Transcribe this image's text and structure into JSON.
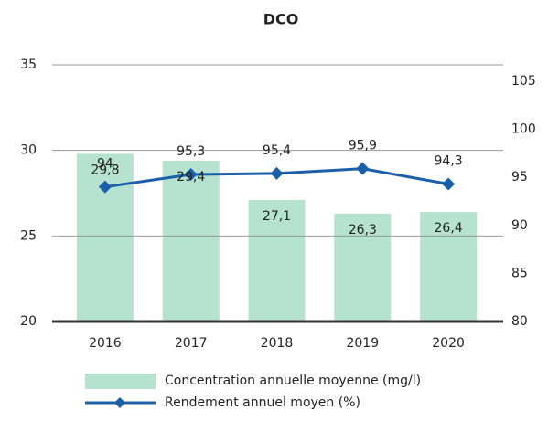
{
  "chart_data": {
    "type": "bar-line",
    "title": "DCO",
    "categories": [
      "2016",
      "2017",
      "2018",
      "2019",
      "2020"
    ],
    "series": [
      {
        "name": "Concentration annuelle moyenne (mg/l)",
        "type": "bar",
        "color": "#b5e2d1",
        "values": [
          29.8,
          29.4,
          27.1,
          26.3,
          26.4
        ],
        "value_labels": [
          "29,8",
          "29,4",
          "27,1",
          "26,3",
          "26,4"
        ]
      },
      {
        "name": "Rendement annuel moyen (%)",
        "type": "line",
        "axis": "y2",
        "color": "#1b5fa8",
        "values": [
          94,
          95.3,
          95.4,
          95.9,
          94.3
        ],
        "value_labels": [
          "94",
          "95,3",
          "95,4",
          "95,9",
          "94,3"
        ]
      }
    ],
    "ylim": [
      20,
      35
    ],
    "yticks": [
      20,
      25,
      30,
      35
    ],
    "y2lim": [
      80,
      106.7
    ],
    "y2ticks": [
      80,
      85,
      90,
      95,
      100,
      105
    ],
    "grid": true
  }
}
